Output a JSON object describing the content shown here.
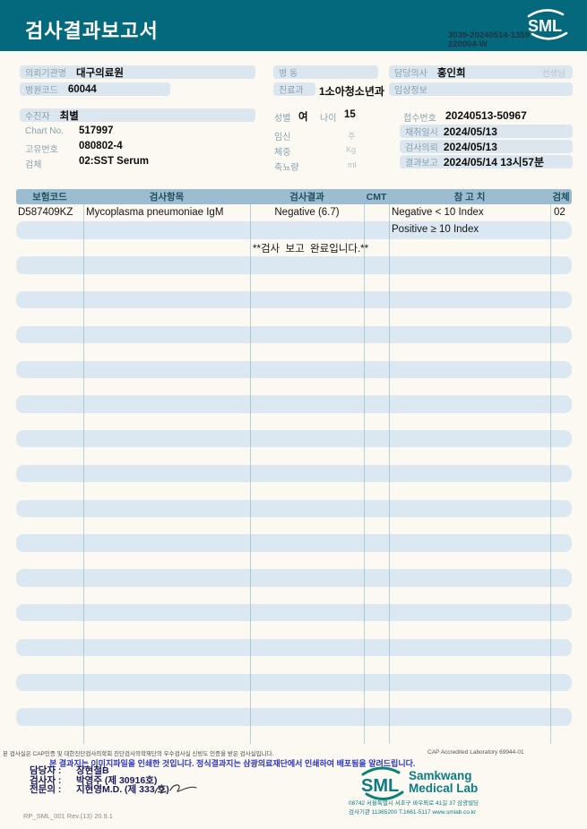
{
  "header": {
    "title": "검사결과보고서",
    "doc_no_line1": "3039-20240514-1359",
    "doc_no_line2": "220004-W",
    "logo_text": "SML"
  },
  "info": {
    "requester_label": "의뢰기관명",
    "requester_value": "대구의료원",
    "hospital_code_label": "병원코드",
    "hospital_code_value": "60044",
    "ward_label": "병 동",
    "ward_value": "",
    "department_label": "진료과",
    "department_value": "1소아청소년과",
    "doctor_label": "담당의사",
    "doctor_value": "홍인희",
    "doctor_suffix": "선생님",
    "clinical_label": "임상정보",
    "clinical_value": "",
    "patient_label": "수진자",
    "patient_value": "최별",
    "chart_label": "Chart No.",
    "chart_value": "517997",
    "uid_label": "고유번호",
    "uid_value": "080802-4",
    "specimen_label": "검체",
    "specimen_value": "02:SST Serum",
    "sex_label": "성별",
    "sex_value": "여",
    "age_label": "나이",
    "age_value": "15",
    "pregnancy_label": "임신",
    "pregnancy_unit": "주",
    "weight_label": "체중",
    "weight_unit": "Kg",
    "urine_label": "축뇨량",
    "urine_unit": "ml",
    "receipt_label": "접수번호",
    "receipt_value": "20240513-50967",
    "collected_label": "채취일시",
    "collected_value": "2024/05/13",
    "requested_label": "검사의뢰",
    "requested_value": "2024/05/13",
    "reported_label": "결과보고",
    "reported_value": "2024/05/14 13시57분"
  },
  "table": {
    "headers": [
      "보험코드",
      "검사항목",
      "검사결과",
      "CMT",
      "참 고 치",
      "검체"
    ],
    "rows": [
      {
        "code": "D587409KZ",
        "item": "Mycoplasma pneumoniae IgM",
        "result": "Negative (6.7)",
        "cmt": "",
        "ref": "Negative < 10 Index",
        "spec": "02"
      },
      {
        "ref": "Positive ≥ 10 Index"
      },
      {
        "message": "**검사  보고  완료입니다.**"
      }
    ],
    "empty_rows": 28
  },
  "footer": {
    "cap_statement": "본 검사실은 CAP인증 및 대한진단검사의학회 진단검사의학재단의 우수검사실 신빙도 인증을 받은 검사실입니다.",
    "cap_accredited": "CAP Accredited Laboratory 69944-01",
    "notice": "본 결과지는 이미지파일을 인쇄한 것입니다. 정식결과지는 삼광의료재단에서 인쇄하여 배포됨을 알려드립니다.",
    "staff": [
      {
        "label": "담당자 :",
        "name": "장현철B"
      },
      {
        "label": "검사자 :",
        "name": "박영주 (제 30916호)"
      },
      {
        "label": "전문의 :",
        "name": "지현영M.D. (제 333 호)"
      }
    ],
    "logo_text": "SML",
    "logo_name_line1": "Samkwang",
    "logo_name_line2": "Medical Lab",
    "address": "08742 서울특별시 서초구 바우뫼로 41길 37 삼광빌딩",
    "contact": "검사기관 11365200 T.1661-5117 www.smlab.co.kr",
    "form_no": "RP_SML_001 Rev.(13) 20.9.1"
  },
  "colors": {
    "banner_teal": "#04697d",
    "field_box": "#dce6ef",
    "table_header": "#9cbccf",
    "row_stripe": "#dbe8f2",
    "notice_blue": "#2b35c4",
    "logo_teal": "#0c7b84"
  }
}
